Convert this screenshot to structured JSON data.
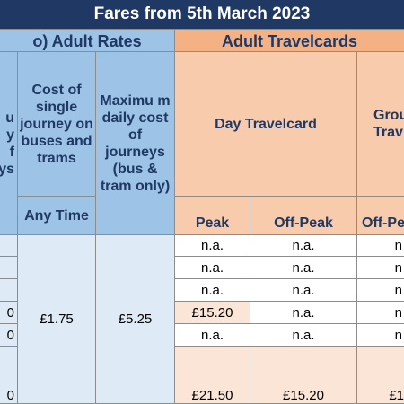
{
  "title": "Fares from 5th March 2023",
  "sections": {
    "adult_rates": "o) Adult Rates",
    "adult_travelcards": "Adult Travelcards"
  },
  "headers": {
    "col0": "u\ny\nf\nys",
    "single": "Cost of single journey on buses and trams",
    "single_sub": "Any Time",
    "max_daily": "Maximu m daily cost of journeys (bus & tram only)",
    "day_travelcard": "Day Travelcard",
    "peak": "Peak",
    "off_peak": "Off-Peak",
    "group": "Grou\nTrav",
    "group_sub": "Off-Pe"
  },
  "rows": [
    {
      "c0": "",
      "peak": "n.a.",
      "offpeak": "n.a.",
      "group": "n"
    },
    {
      "c0": "",
      "peak": "n.a.",
      "offpeak": "n.a.",
      "group": "n"
    },
    {
      "c0": "",
      "peak": "n.a.",
      "offpeak": "n.a.",
      "group": "n"
    },
    {
      "c0": "0",
      "peak": "£15.20",
      "offpeak": "n.a.",
      "group": "n"
    },
    {
      "c0": "0",
      "peak": "n.a.",
      "offpeak": "n.a.",
      "group": "n"
    },
    {
      "c0": "0",
      "peak": "£21.50",
      "offpeak": "£15.20",
      "group": "£1"
    }
  ],
  "merged": {
    "single": "£1.75",
    "max_daily": "£5.25"
  }
}
